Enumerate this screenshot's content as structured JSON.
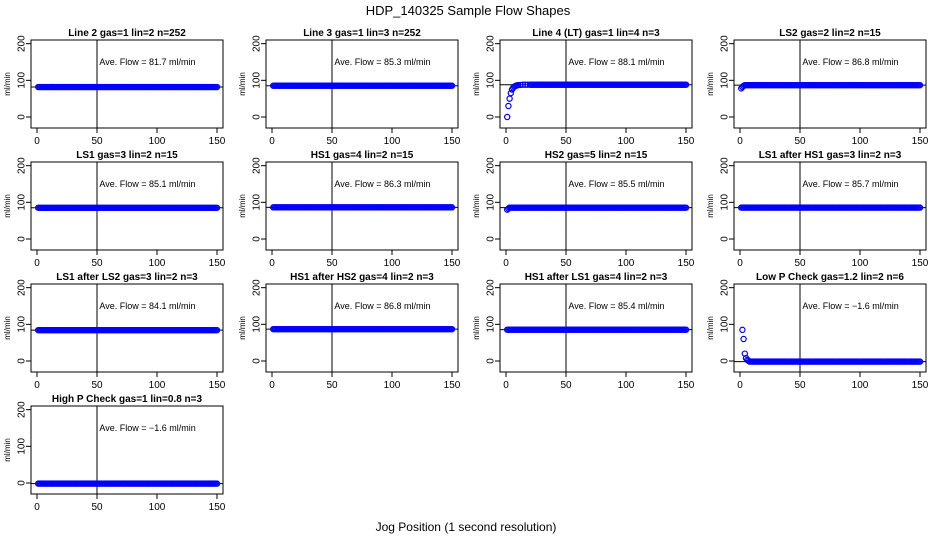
{
  "figure": {
    "title": "HDP_140325  Sample Flow Shapes",
    "xlabel": "Jog Position (1 second resolution)"
  },
  "colors": {
    "points": "#0000ff",
    "axes": "#000000",
    "background": "#ffffff"
  },
  "chart_data": [
    {
      "type": "scatter",
      "title": "Line 2 gas=1 lin=2 n=252",
      "ylabel": "ml/min",
      "annotation": "Ave. Flow =  81.7  ml/min",
      "xlim": [
        0,
        150
      ],
      "ylim": [
        -30,
        210
      ],
      "xticks": [
        0,
        50,
        100,
        150
      ],
      "yticks": [
        0,
        100,
        200
      ],
      "vline_x": 50,
      "hline_y": 81.7,
      "series": [
        {
          "kind": "constant",
          "x_start": 1,
          "x_end": 150,
          "y": 81.7
        }
      ]
    },
    {
      "type": "scatter",
      "title": "Line 3 gas=1 lin=3 n=252",
      "ylabel": "ml/min",
      "annotation": "Ave. Flow =  85.3  ml/min",
      "xlim": [
        0,
        150
      ],
      "ylim": [
        -30,
        210
      ],
      "xticks": [
        0,
        50,
        100,
        150
      ],
      "yticks": [
        0,
        100,
        200
      ],
      "vline_x": 50,
      "hline_y": 85.3,
      "series": [
        {
          "kind": "constant",
          "x_start": 1,
          "x_end": 150,
          "y": 85.3
        }
      ]
    },
    {
      "type": "scatter",
      "title": "Line 4 (LT) gas=1 lin=4 n=3",
      "ylabel": "ml/min",
      "annotation": "Ave. Flow =  88.1  ml/min",
      "xlim": [
        0,
        150
      ],
      "ylim": [
        -30,
        210
      ],
      "xticks": [
        0,
        50,
        100,
        150
      ],
      "yticks": [
        0,
        100,
        200
      ],
      "vline_x": 50,
      "hline_y": 88.1,
      "series": [
        {
          "kind": "explicit",
          "points": [
            [
              1,
              0
            ],
            [
              2,
              30
            ],
            [
              3,
              50
            ],
            [
              4,
              65
            ],
            [
              5,
              75
            ],
            [
              6,
              80
            ],
            [
              7,
              83
            ],
            [
              8,
              85
            ],
            [
              9,
              86
            ],
            [
              10,
              87
            ],
            [
              12,
              87.5
            ],
            [
              14,
              88
            ],
            [
              16,
              88
            ],
            [
              18,
              88
            ],
            [
              20,
              88
            ]
          ]
        },
        {
          "kind": "constant",
          "x_start": 21,
          "x_end": 150,
          "y": 88.1
        }
      ]
    },
    {
      "type": "scatter",
      "title": "LS2 gas=2 lin=2 n=15",
      "ylabel": "ml/min",
      "annotation": "Ave. Flow =  86.8  ml/min",
      "xlim": [
        0,
        150
      ],
      "ylim": [
        -30,
        210
      ],
      "xticks": [
        0,
        50,
        100,
        150
      ],
      "yticks": [
        0,
        100,
        200
      ],
      "vline_x": 50,
      "hline_y": 86.8,
      "series": [
        {
          "kind": "explicit",
          "points": [
            [
              1,
              78
            ],
            [
              2,
              82
            ],
            [
              3,
              85
            ]
          ]
        },
        {
          "kind": "constant",
          "x_start": 4,
          "x_end": 150,
          "y": 86.8
        }
      ]
    },
    {
      "type": "scatter",
      "title": "LS1 gas=3 lin=2 n=15",
      "ylabel": "ml/min",
      "annotation": "Ave. Flow =  85.1  ml/min",
      "xlim": [
        0,
        150
      ],
      "ylim": [
        -30,
        210
      ],
      "xticks": [
        0,
        50,
        100,
        150
      ],
      "yticks": [
        0,
        100,
        200
      ],
      "vline_x": 50,
      "hline_y": 85.1,
      "series": [
        {
          "kind": "constant",
          "x_start": 1,
          "x_end": 150,
          "y": 85.1
        }
      ]
    },
    {
      "type": "scatter",
      "title": "HS1 gas=4 lin=2 n=15",
      "ylabel": "ml/min",
      "annotation": "Ave. Flow =  86.3  ml/min",
      "xlim": [
        0,
        150
      ],
      "ylim": [
        -30,
        210
      ],
      "xticks": [
        0,
        50,
        100,
        150
      ],
      "yticks": [
        0,
        100,
        200
      ],
      "vline_x": 50,
      "hline_y": 86.3,
      "series": [
        {
          "kind": "constant",
          "x_start": 1,
          "x_end": 150,
          "y": 86.3
        }
      ]
    },
    {
      "type": "scatter",
      "title": "HS2 gas=5 lin=2 n=15",
      "ylabel": "ml/min",
      "annotation": "Ave. Flow =  85.5  ml/min",
      "xlim": [
        0,
        150
      ],
      "ylim": [
        -30,
        210
      ],
      "xticks": [
        0,
        50,
        100,
        150
      ],
      "yticks": [
        0,
        100,
        200
      ],
      "vline_x": 50,
      "hline_y": 85.5,
      "series": [
        {
          "kind": "explicit",
          "points": [
            [
              1,
              80
            ],
            [
              2,
              83
            ]
          ]
        },
        {
          "kind": "constant",
          "x_start": 3,
          "x_end": 150,
          "y": 85.5
        }
      ]
    },
    {
      "type": "scatter",
      "title": "LS1 after HS1 gas=3 lin=2 n=3",
      "ylabel": "ml/min",
      "annotation": "Ave. Flow =  85.7  ml/min",
      "xlim": [
        0,
        150
      ],
      "ylim": [
        -30,
        210
      ],
      "xticks": [
        0,
        50,
        100,
        150
      ],
      "yticks": [
        0,
        100,
        200
      ],
      "vline_x": 50,
      "hline_y": 85.7,
      "series": [
        {
          "kind": "constant",
          "x_start": 1,
          "x_end": 150,
          "y": 85.7
        }
      ]
    },
    {
      "type": "scatter",
      "title": "LS1 after LS2 gas=3 lin=2 n=3",
      "ylabel": "ml/min",
      "annotation": "Ave. Flow =  84.1  ml/min",
      "xlim": [
        0,
        150
      ],
      "ylim": [
        -30,
        210
      ],
      "xticks": [
        0,
        50,
        100,
        150
      ],
      "yticks": [
        0,
        100,
        200
      ],
      "vline_x": 50,
      "hline_y": 84.1,
      "series": [
        {
          "kind": "constant",
          "x_start": 1,
          "x_end": 150,
          "y": 84.1
        }
      ]
    },
    {
      "type": "scatter",
      "title": "HS1 after HS2 gas=4 lin=2 n=3",
      "ylabel": "ml/min",
      "annotation": "Ave. Flow =  86.8  ml/min",
      "xlim": [
        0,
        150
      ],
      "ylim": [
        -30,
        210
      ],
      "xticks": [
        0,
        50,
        100,
        150
      ],
      "yticks": [
        0,
        100,
        200
      ],
      "vline_x": 50,
      "hline_y": 86.8,
      "series": [
        {
          "kind": "constant",
          "x_start": 1,
          "x_end": 150,
          "y": 86.8
        }
      ]
    },
    {
      "type": "scatter",
      "title": "HS1 after LS1 gas=4 lin=2 n=3",
      "ylabel": "ml/min",
      "annotation": "Ave. Flow =  85.4  ml/min",
      "xlim": [
        0,
        150
      ],
      "ylim": [
        -30,
        210
      ],
      "xticks": [
        0,
        50,
        100,
        150
      ],
      "yticks": [
        0,
        100,
        200
      ],
      "vline_x": 50,
      "hline_y": 85.4,
      "series": [
        {
          "kind": "constant",
          "x_start": 1,
          "x_end": 150,
          "y": 85.4
        }
      ]
    },
    {
      "type": "scatter",
      "title": "Low P Check gas=1.2 lin=2 n=6",
      "ylabel": "ml/min",
      "annotation": "Ave. Flow =  −1.6  ml/min",
      "xlim": [
        0,
        150
      ],
      "ylim": [
        -30,
        210
      ],
      "xticks": [
        0,
        50,
        100,
        150
      ],
      "yticks": [
        0,
        100,
        200
      ],
      "vline_x": 50,
      "hline_y": -1.6,
      "series": [
        {
          "kind": "explicit",
          "points": [
            [
              2,
              85
            ],
            [
              3,
              60
            ],
            [
              4,
              20
            ],
            [
              5,
              8
            ],
            [
              6,
              3
            ],
            [
              7,
              1
            ]
          ]
        },
        {
          "kind": "constant",
          "x_start": 8,
          "x_end": 150,
          "y": -1.6
        }
      ]
    },
    {
      "type": "scatter",
      "title": "High P Check gas=1 lin=0.8 n=3",
      "ylabel": "ml/min",
      "annotation": "Ave. Flow =  −1.6  ml/min",
      "xlim": [
        0,
        150
      ],
      "ylim": [
        -30,
        210
      ],
      "xticks": [
        0,
        50,
        100,
        150
      ],
      "yticks": [
        0,
        100,
        200
      ],
      "vline_x": 50,
      "hline_y": -1.6,
      "series": [
        {
          "kind": "constant",
          "x_start": 1,
          "x_end": 150,
          "y": -1.6
        }
      ]
    }
  ]
}
